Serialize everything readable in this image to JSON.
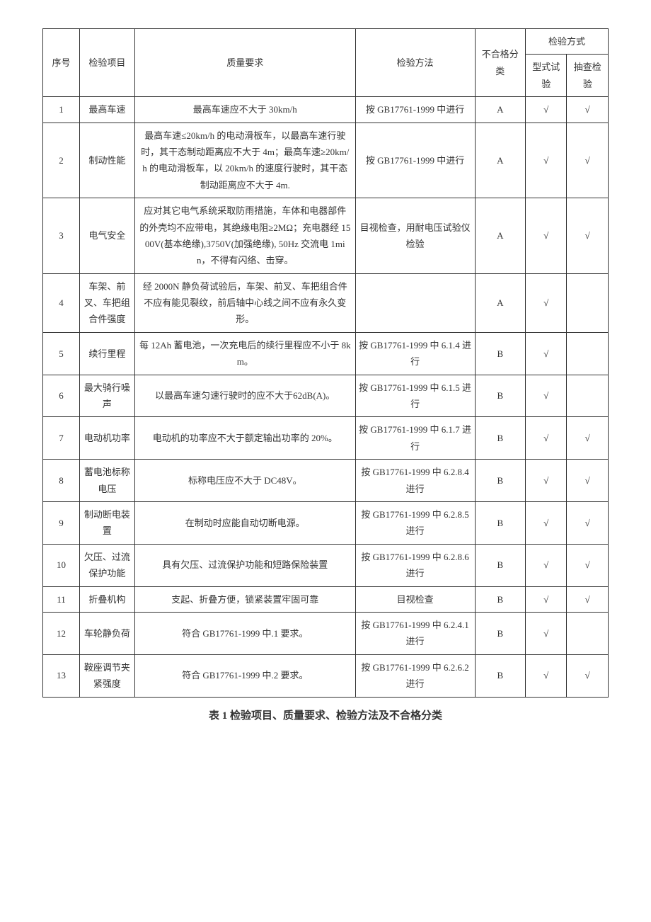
{
  "headers": {
    "num": "序号",
    "item": "检验项目",
    "req": "质量要求",
    "method": "检验方法",
    "cls": "不合格分类",
    "mode": "检验方式",
    "type_test": "型式试验",
    "sample_test": "抽查检验"
  },
  "rows": [
    {
      "num": "1",
      "item": "最高车速",
      "req": "最高车速应不大于 30km/h",
      "method": "按 GB17761-1999 中进行",
      "cls": "A",
      "type_test": "√",
      "sample_test": "√"
    },
    {
      "num": "2",
      "item": "制动性能",
      "req": "最高车速≤20km/h 的电动滑板车，以最高车速行驶时，其干态制动距离应不大于 4m；最高车速≥20km/h 的电动滑板车，以 20km/h 的速度行驶时，其干态制动距离应不大于 4m.",
      "method": "按 GB17761-1999 中进行",
      "cls": "A",
      "type_test": "√",
      "sample_test": "√"
    },
    {
      "num": "3",
      "item": "电气安全",
      "req": "应对其它电气系统采取防雨措施，车体和电器部件的外壳均不应带电，其绝缘电阻≥2MΩ；充电器经 1500V(基本绝缘),3750V(加强绝缘), 50Hz 交流电 1min，不得有闪络、击穿。",
      "method": "目视检查，用耐电压试验仪检验",
      "cls": "A",
      "type_test": "√",
      "sample_test": "√"
    },
    {
      "num": "4",
      "item": "车架、前叉、车把组合件强度",
      "req": "经 2000N 静负荷试验后，车架、前叉、车把组合件不应有能见裂纹，前后轴中心线之间不应有永久变形。",
      "method": "",
      "cls": "A",
      "type_test": "√",
      "sample_test": ""
    },
    {
      "num": "5",
      "item": "续行里程",
      "req": "每 12Ah 蓄电池，一次充电后的续行里程应不小于 8km。",
      "method": "按 GB17761-1999 中 6.1.4 进行",
      "cls": "B",
      "type_test": "√",
      "sample_test": ""
    },
    {
      "num": "6",
      "item": "最大骑行噪声",
      "req": "以最高车速匀速行驶时的应不大于62dB(A)。",
      "method": "按 GB17761-1999 中 6.1.5 进行",
      "cls": "B",
      "type_test": "√",
      "sample_test": ""
    },
    {
      "num": "7",
      "item": "电动机功率",
      "req": "电动机的功率应不大于额定输出功率的 20%。",
      "method": "按 GB17761-1999 中 6.1.7 进行",
      "cls": "B",
      "type_test": "√",
      "sample_test": "√"
    },
    {
      "num": "8",
      "item": "蓄电池标称电压",
      "req": "标称电压应不大于 DC48V。",
      "method": "按 GB17761-1999 中 6.2.8.4 进行",
      "cls": "B",
      "type_test": "√",
      "sample_test": "√"
    },
    {
      "num": "9",
      "item": "制动断电装置",
      "req": "在制动时应能自动切断电源。",
      "method": "按 GB17761-1999 中 6.2.8.5 进行",
      "cls": "B",
      "type_test": "√",
      "sample_test": "√"
    },
    {
      "num": "10",
      "item": "欠压、过流保护功能",
      "req": "具有欠压、过流保护功能和短路保险装置",
      "method": "按 GB17761-1999 中 6.2.8.6 进行",
      "cls": "B",
      "type_test": "√",
      "sample_test": "√"
    },
    {
      "num": "11",
      "item": "折叠机构",
      "req": "支起、折叠方便，锁紧装置牢固可靠",
      "method": "目视检查",
      "cls": "B",
      "type_test": "√",
      "sample_test": "√"
    },
    {
      "num": "12",
      "item": "车轮静负荷",
      "req": "符合 GB17761-1999 中.1 要求。",
      "method": "按 GB17761-1999 中 6.2.4.1 进行",
      "cls": "B",
      "type_test": "√",
      "sample_test": ""
    },
    {
      "num": "13",
      "item": "鞍座调节夹紧强度",
      "req": "符合 GB17761-1999 中.2 要求。",
      "method": "按 GB17761-1999 中 6.2.6.2 进行",
      "cls": "B",
      "type_test": "√",
      "sample_test": "√"
    }
  ],
  "caption": "表 1 检验项目、质量要求、检验方法及不合格分类"
}
